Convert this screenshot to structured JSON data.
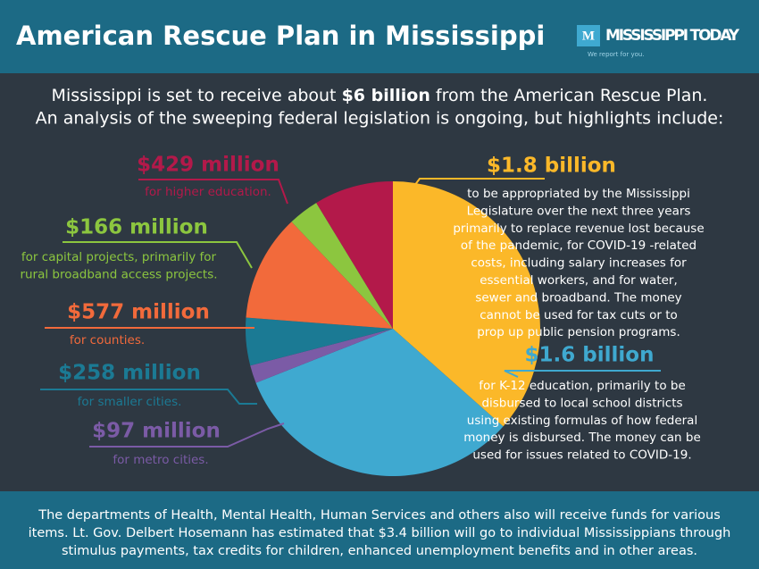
{
  "chart_data": {
    "type": "pie",
    "title": "American Rescue Plan in Mississippi",
    "logo": "MISSISSIPPI TODAY",
    "logo_mark": "M",
    "tagline": "We report for you.",
    "subtitle_parts": [
      "Mississippi is set to receive about ",
      "$6 billion",
      " from the American Rescue Plan."
    ],
    "subtitle_line2": "An analysis of the sweeping federal legislation is ongoing, but highlights include:",
    "values": [
      1800,
      1600,
      97,
      258,
      577,
      166,
      429
    ],
    "value_labels": [
      "$1.8 billion",
      "$1.6 billion",
      "$97 million",
      "$258 million",
      "$577 million",
      "$166 million",
      "$429 million"
    ],
    "colors": [
      "#fbb829",
      "#3fa9d0",
      "#7b5ba6",
      "#1b7a94",
      "#f26a3b",
      "#8cc63f",
      "#b3194a"
    ],
    "descriptions": [
      [
        "to be appropriated by the Mississippi",
        "Legislature over the next three years",
        "primarily to replace revenue lost because",
        "of the pandemic, for COVID-19 -related",
        "costs, including salary increases for",
        "essential workers, and for water,",
        "sewer and broadband. The money",
        "cannot be used for tax cuts or to",
        "prop up public pension programs."
      ],
      [
        "for K-12 education, primarily to be",
        "disbursed to local school districts",
        "using existing formulas of how federal",
        "money is disbursed. The money can be",
        "used for issues related to COVID-19."
      ],
      [
        "for metro cities."
      ],
      [
        "for smaller cities."
      ],
      [
        "for counties."
      ],
      [
        "for capital projects, primarily for",
        "rural broadband access projects."
      ],
      [
        "for higher education."
      ]
    ],
    "note": [
      "The departments of Health, Mental Health, Human Services and others also will receive funds for various",
      "items. Lt. Gov. Delbert Hosemann has estimated that $3.4 billion will go to individual Mississippians through",
      "stimulus payments, tax credits for children, enhanced unemployment benefits and in other areas."
    ]
  }
}
